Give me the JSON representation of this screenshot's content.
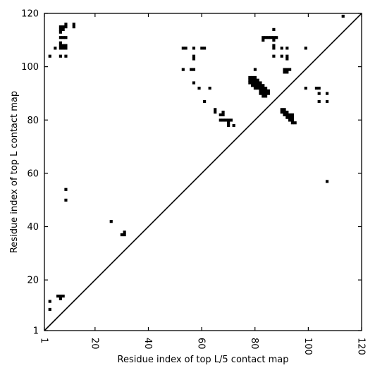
{
  "chart_data": {
    "type": "scatter",
    "title": "",
    "xlabel": "Residue index of top L/5 contact map",
    "ylabel": "Residue index of top L contact map",
    "xlim": [
      1,
      120
    ],
    "ylim": [
      1,
      120
    ],
    "x_ticks": [
      1,
      20,
      40,
      60,
      80,
      100,
      120
    ],
    "y_ticks": [
      1,
      20,
      40,
      60,
      80,
      100,
      120
    ],
    "x_tick_labels": [
      "1",
      "20",
      "40",
      "60",
      "80",
      "100",
      "120"
    ],
    "y_tick_labels": [
      "1",
      "20",
      "40",
      "60",
      "80",
      "100",
      "120"
    ],
    "x_tick_rotation_deg": 90,
    "grid": false,
    "legend": "none",
    "colors": {
      "contact": "#000000",
      "diagonal": "#000000",
      "background": "#ffffff"
    },
    "diagonal_line": {
      "from": [
        1,
        1
      ],
      "to": [
        120,
        120
      ]
    },
    "series": [
      {
        "points": [
          [
            3,
            104
          ],
          [
            5,
            107
          ],
          [
            7,
            104
          ],
          [
            7,
            107
          ],
          [
            7,
            108
          ],
          [
            7,
            109
          ],
          [
            7,
            111
          ],
          [
            7,
            113
          ],
          [
            7,
            114
          ],
          [
            7,
            115
          ],
          [
            8,
            107
          ],
          [
            8,
            108
          ],
          [
            8,
            111
          ],
          [
            8,
            114
          ],
          [
            8,
            115
          ],
          [
            9,
            104
          ],
          [
            9,
            107
          ],
          [
            9,
            108
          ],
          [
            9,
            111
          ],
          [
            9,
            115
          ],
          [
            9,
            116
          ],
          [
            12,
            115
          ],
          [
            12,
            116
          ],
          [
            53,
            99
          ],
          [
            53,
            107
          ],
          [
            54,
            107
          ],
          [
            56,
            99
          ],
          [
            57,
            94
          ],
          [
            57,
            99
          ],
          [
            57,
            103
          ],
          [
            57,
            104
          ],
          [
            57,
            107
          ],
          [
            59,
            92
          ],
          [
            60,
            107
          ],
          [
            61,
            87
          ],
          [
            61,
            107
          ],
          [
            63,
            92
          ],
          [
            65,
            83
          ],
          [
            65,
            84
          ],
          [
            67,
            80
          ],
          [
            67,
            82
          ],
          [
            68,
            80
          ],
          [
            68,
            82
          ],
          [
            68,
            83
          ],
          [
            69,
            80
          ],
          [
            70,
            78
          ],
          [
            70,
            79
          ],
          [
            70,
            80
          ],
          [
            71,
            80
          ],
          [
            72,
            78
          ],
          [
            78,
            94
          ],
          [
            78,
            95
          ],
          [
            78,
            96
          ],
          [
            79,
            93
          ],
          [
            79,
            94
          ],
          [
            79,
            95
          ],
          [
            79,
            96
          ],
          [
            80,
            92
          ],
          [
            80,
            93
          ],
          [
            80,
            94
          ],
          [
            80,
            95
          ],
          [
            80,
            96
          ],
          [
            80,
            99
          ],
          [
            81,
            92
          ],
          [
            81,
            93
          ],
          [
            81,
            94
          ],
          [
            81,
            95
          ],
          [
            82,
            90
          ],
          [
            82,
            91
          ],
          [
            82,
            92
          ],
          [
            82,
            93
          ],
          [
            82,
            94
          ],
          [
            83,
            89
          ],
          [
            83,
            90
          ],
          [
            83,
            91
          ],
          [
            83,
            92
          ],
          [
            83,
            93
          ],
          [
            83,
            110
          ],
          [
            83,
            111
          ],
          [
            84,
            89
          ],
          [
            84,
            90
          ],
          [
            84,
            91
          ],
          [
            84,
            92
          ],
          [
            84,
            111
          ],
          [
            85,
            90
          ],
          [
            85,
            91
          ],
          [
            85,
            111
          ],
          [
            86,
            111
          ],
          [
            87,
            104
          ],
          [
            87,
            107
          ],
          [
            87,
            108
          ],
          [
            87,
            110
          ],
          [
            87,
            111
          ],
          [
            87,
            114
          ],
          [
            88,
            111
          ],
          [
            90,
            83
          ],
          [
            90,
            84
          ],
          [
            90,
            104
          ],
          [
            90,
            107
          ],
          [
            91,
            82
          ],
          [
            91,
            83
          ],
          [
            91,
            84
          ],
          [
            91,
            98
          ],
          [
            91,
            99
          ],
          [
            92,
            81
          ],
          [
            92,
            82
          ],
          [
            92,
            83
          ],
          [
            92,
            98
          ],
          [
            92,
            99
          ],
          [
            92,
            103
          ],
          [
            92,
            104
          ],
          [
            92,
            107
          ],
          [
            93,
            80
          ],
          [
            93,
            81
          ],
          [
            93,
            82
          ],
          [
            93,
            99
          ],
          [
            94,
            79
          ],
          [
            94,
            80
          ],
          [
            94,
            81
          ],
          [
            94,
            82
          ],
          [
            95,
            79
          ],
          [
            99,
            92
          ],
          [
            99,
            107
          ],
          [
            103,
            92
          ],
          [
            104,
            87
          ],
          [
            104,
            90
          ],
          [
            104,
            92
          ],
          [
            107,
            57
          ],
          [
            107,
            87
          ],
          [
            107,
            90
          ],
          [
            113,
            119
          ],
          [
            3,
            9
          ],
          [
            3,
            12
          ],
          [
            6,
            14
          ],
          [
            7,
            13
          ],
          [
            7,
            14
          ],
          [
            8,
            14
          ],
          [
            9,
            50
          ],
          [
            9,
            54
          ],
          [
            26,
            42
          ],
          [
            30,
            37
          ],
          [
            31,
            37
          ],
          [
            31,
            38
          ]
        ]
      }
    ]
  }
}
